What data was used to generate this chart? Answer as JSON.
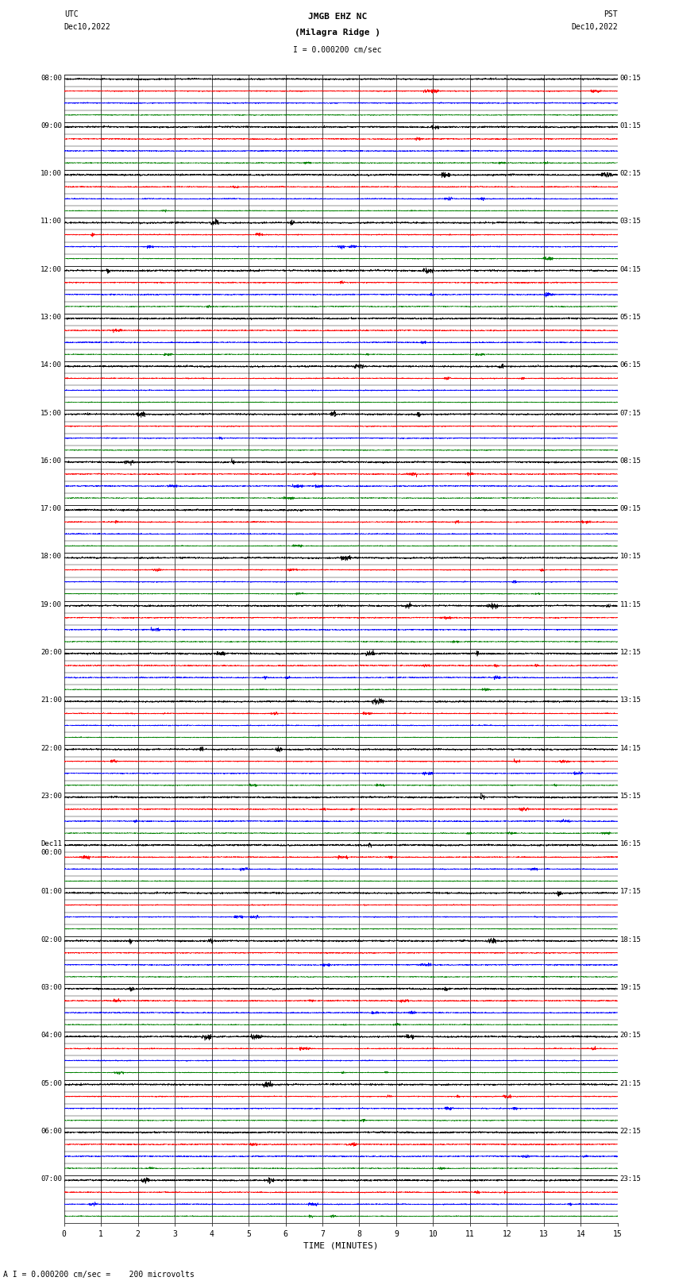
{
  "title_line1": "JMGB EHZ NC",
  "title_line2": "(Milagra Ridge )",
  "scale_label": "I = 0.000200 cm/sec",
  "left_header_line1": "UTC",
  "left_header_line2": "Dec10,2022",
  "right_header_line1": "PST",
  "right_header_line2": "Dec10,2022",
  "bottom_label": "TIME (MINUTES)",
  "bottom_note": "A I = 0.000200 cm/sec =    200 microvolts",
  "num_rows": 24,
  "x_ticks": [
    0,
    1,
    2,
    3,
    4,
    5,
    6,
    7,
    8,
    9,
    10,
    11,
    12,
    13,
    14,
    15
  ],
  "left_labels": [
    "08:00",
    "09:00",
    "10:00",
    "11:00",
    "12:00",
    "13:00",
    "14:00",
    "15:00",
    "16:00",
    "17:00",
    "18:00",
    "19:00",
    "20:00",
    "21:00",
    "22:00",
    "23:00",
    "Dec11\n00:00",
    "01:00",
    "02:00",
    "03:00",
    "04:00",
    "05:00",
    "06:00",
    "07:00"
  ],
  "right_labels": [
    "00:15",
    "01:15",
    "02:15",
    "03:15",
    "04:15",
    "05:15",
    "06:15",
    "07:15",
    "08:15",
    "09:15",
    "10:15",
    "11:15",
    "12:15",
    "13:15",
    "14:15",
    "15:15",
    "16:15",
    "17:15",
    "18:15",
    "19:15",
    "20:15",
    "21:15",
    "22:15",
    "23:15"
  ],
  "bg_color": "#ffffff",
  "grid_color": "#000000",
  "sub_colors": [
    "#000000",
    "#ff0000",
    "#0000ff",
    "#008000"
  ],
  "fig_width": 8.5,
  "fig_height": 16.13,
  "amp_black": 0.008,
  "amp_red": 0.005,
  "amp_blue": 0.005,
  "amp_green": 0.004,
  "n_points": 4000,
  "seed": 42
}
